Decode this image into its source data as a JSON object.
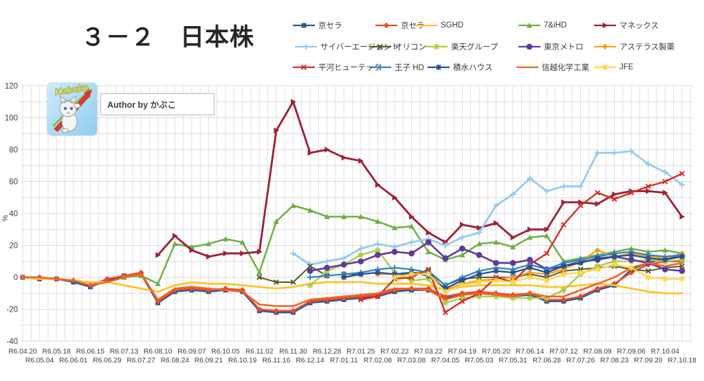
{
  "title": "３－２　日本株",
  "logo": {
    "text": "Kabuko"
  },
  "author_text": "Author by かぶこ",
  "y_axis": {
    "unit_label": "%",
    "min": -40,
    "max": 120,
    "tick_step": 20,
    "minor_grid_step": 10,
    "ticks": [
      120,
      100,
      80,
      60,
      40,
      20,
      0,
      -20,
      -40
    ]
  },
  "legend": {
    "rows": [
      [
        {
          "label": "京セラ",
          "series": 0
        },
        {
          "label": "京セラ",
          "series": 1
        },
        {
          "label": "SGHD",
          "series": 2
        },
        {
          "label": "7&iHD",
          "series": 3
        },
        {
          "label": "マネックス",
          "series": 4
        }
      ],
      [
        {
          "label": "サイバーエージェント",
          "series": 5
        },
        {
          "label": "オリコン",
          "series": 6
        },
        {
          "label": "楽天グループ",
          "series": 7
        },
        {
          "label": "東京メトロ",
          "series": 8
        },
        {
          "label": "アステラス製薬",
          "series": 9
        }
      ],
      [
        {
          "label": "平河ヒューテック",
          "series": 10
        },
        {
          "label": "王子 HD",
          "series": 11
        },
        {
          "label": "積水ハウス",
          "series": 12
        },
        {
          "label": "信越化学工業",
          "series": 13
        },
        {
          "label": "JFE",
          "series": 14
        }
      ]
    ]
  },
  "chart_data": {
    "type": "line",
    "title": "３－２　日本株",
    "xlabel": "",
    "ylabel": "%",
    "ylim": [
      -40,
      120
    ],
    "grid": true,
    "legend_position": "top",
    "categories": [
      "R6.04.20",
      "R6.05.04",
      "R6.05.18",
      "R6.06.01",
      "R6.06.15",
      "R6.06.29",
      "R6.07.13",
      "R6.07.27",
      "R6.08.10",
      "R6.08.24",
      "R6.09.07",
      "R6.09.21",
      "R6.10.05",
      "R6.10.19",
      "R6.11.02",
      "R6.11.16",
      "R6.11.30",
      "R6.12.14",
      "R6.12.28",
      "R7.01.11",
      "R7.01.25",
      "R7.02.08",
      "R7.02.22",
      "R7.03.08",
      "R7.03.22",
      "R7.04.05",
      "R7.04.19",
      "R7.05.03",
      "R7.05.20",
      "R7.05.31",
      "R7.06.14",
      "R7.06.28",
      "R7.07.12",
      "R7.07.26",
      "R7.08.09",
      "R7.08.23",
      "R7.09.06",
      "R7.09.20",
      "R7.10.04",
      "R7.10.18"
    ],
    "series": [
      {
        "key": "kyocera-blue",
        "name": "京セラ",
        "color": "#2F5597",
        "marker": "square",
        "line_width": 2.4,
        "values": [
          0,
          -1,
          -1,
          -3,
          -6,
          -2,
          1,
          2,
          -16,
          -9,
          -8,
          -9,
          -8,
          -9,
          -21,
          -22,
          -22,
          -16,
          -15,
          -14,
          -13,
          -12,
          -9,
          -8,
          -8,
          -13,
          -11,
          -10,
          -11,
          -12,
          -11,
          -15,
          -15,
          -13,
          -8,
          -5,
          5,
          9,
          12,
          13
        ]
      },
      {
        "key": "kyocera-orange",
        "name": "京セラ",
        "color": "#EC4B25",
        "marker": "diamond",
        "line_width": 2.4,
        "values": [
          0,
          0,
          -1,
          -2,
          -5,
          -1,
          1,
          3,
          -15,
          -8,
          -7,
          -8,
          -7,
          -8,
          -20,
          -21,
          -21,
          -15,
          -14,
          -13,
          -12,
          -11,
          -8,
          -7,
          -7,
          -12,
          -10,
          -9,
          -10,
          -11,
          -10,
          -14,
          -14,
          -12,
          -7,
          -4,
          3,
          8,
          10,
          10
        ]
      },
      {
        "key": "sghd",
        "name": "SGHD",
        "color": "#FFC428",
        "marker": "line",
        "line_width": 2.8,
        "values": [
          0,
          -1,
          -1,
          -2,
          -3,
          -3,
          -5,
          -7,
          -9,
          -5,
          -3,
          -4,
          -4,
          -5,
          -6,
          -7,
          -6,
          -4,
          -3,
          -3,
          -3,
          -4,
          -4,
          -4,
          -5,
          -8,
          -6,
          -5,
          -5,
          -5,
          -5,
          -6,
          -6,
          -5,
          -4,
          -5,
          -7,
          -9,
          -10,
          -10
        ]
      },
      {
        "key": "seven-and-i-hd",
        "name": "7&iHD",
        "color": "#6FAE44",
        "marker": "triangle",
        "line_width": 2.5,
        "values": [
          null,
          null,
          null,
          null,
          null,
          null,
          0,
          1,
          -4,
          21,
          19,
          21,
          24,
          22,
          3,
          35,
          45,
          42,
          38,
          38,
          38,
          35,
          31,
          32,
          16,
          11,
          14,
          21,
          22,
          19,
          25,
          26,
          10,
          12,
          14,
          16,
          18,
          16,
          17,
          15
        ]
      },
      {
        "key": "monex",
        "name": "マネックス",
        "color": "#9E2139",
        "marker": "triangle-right",
        "line_width": 2.9,
        "values": [
          null,
          null,
          null,
          null,
          null,
          null,
          null,
          null,
          14,
          26,
          17,
          13,
          15,
          15,
          16,
          92,
          110,
          78,
          80,
          75,
          73,
          58,
          50,
          38,
          28,
          22,
          33,
          31,
          34,
          25,
          30,
          30,
          47,
          47,
          46,
          52,
          54,
          54,
          53,
          38
        ]
      },
      {
        "key": "cyberagent",
        "name": "サイバーエージェント",
        "color": "#96C9F0",
        "marker": "plus",
        "line_width": 2.7,
        "values": [
          null,
          null,
          null,
          null,
          null,
          null,
          null,
          null,
          null,
          null,
          null,
          null,
          null,
          null,
          null,
          null,
          15,
          8,
          10,
          12,
          18,
          21,
          19,
          22,
          24,
          20,
          25,
          28,
          45,
          52,
          62,
          54,
          57,
          57,
          78,
          78,
          79,
          71,
          66,
          58
        ]
      },
      {
        "key": "oricon",
        "name": "オリコン",
        "color": "#565A28",
        "marker": "x",
        "line_width": 2.0,
        "values": [
          null,
          null,
          null,
          null,
          null,
          null,
          null,
          null,
          null,
          null,
          null,
          null,
          null,
          null,
          0,
          -3,
          -3,
          7,
          1,
          2,
          2,
          3,
          2,
          2,
          4,
          -5,
          -1,
          0,
          0,
          0,
          2,
          0,
          4,
          5,
          6,
          7,
          5,
          4,
          6,
          7
        ]
      },
      {
        "key": "rakuten-group",
        "name": "楽天グループ",
        "color": "#ABCC3F",
        "marker": "asterisk",
        "line_width": 2.3,
        "values": [
          null,
          null,
          null,
          null,
          null,
          null,
          null,
          null,
          null,
          null,
          null,
          null,
          null,
          null,
          null,
          null,
          null,
          -5,
          4,
          8,
          14,
          17,
          3,
          -2,
          -1,
          -16,
          -13,
          -12,
          -12,
          -13,
          -13,
          -13,
          -8,
          2,
          7,
          10,
          10,
          11,
          10,
          11
        ]
      },
      {
        "key": "tokyo-metro",
        "name": "東京メトロ",
        "color": "#5F3A9E",
        "marker": "circle",
        "line_width": 2.6,
        "values": [
          null,
          null,
          null,
          null,
          null,
          null,
          null,
          null,
          null,
          null,
          null,
          null,
          null,
          null,
          null,
          null,
          null,
          4,
          6,
          8,
          10,
          14,
          16,
          15,
          22,
          12,
          18,
          14,
          9,
          9,
          11,
          5,
          7,
          10,
          11,
          13,
          11,
          9,
          5,
          4
        ]
      },
      {
        "key": "astellas",
        "name": "アステラス製薬",
        "color": "#F5A01B",
        "marker": "diamond",
        "line_width": 2.3,
        "values": [
          null,
          null,
          null,
          null,
          null,
          null,
          null,
          null,
          null,
          null,
          null,
          null,
          null,
          null,
          null,
          null,
          null,
          null,
          null,
          null,
          null,
          2,
          2,
          3,
          3,
          -8,
          -4,
          -2,
          -1,
          0,
          3,
          2,
          5,
          10,
          17,
          13,
          15,
          13,
          12,
          15
        ]
      },
      {
        "key": "hirakawa-hutech",
        "name": "平河ヒューテック",
        "color": "#D92B23",
        "marker": "x",
        "line_width": 2.4,
        "values": [
          null,
          null,
          null,
          null,
          null,
          null,
          null,
          null,
          null,
          null,
          null,
          null,
          null,
          null,
          null,
          null,
          null,
          null,
          null,
          null,
          -14,
          -12,
          -1,
          0,
          5,
          -22,
          -15,
          -10,
          0,
          -3,
          8,
          15,
          33,
          45,
          53,
          49,
          53,
          57,
          60,
          65
        ]
      },
      {
        "key": "oji-hd",
        "name": "王子 HD",
        "color": "#2E86C8",
        "marker": "plus",
        "line_width": 2.3,
        "values": [
          null,
          null,
          null,
          null,
          null,
          null,
          null,
          null,
          null,
          null,
          null,
          null,
          null,
          null,
          null,
          null,
          null,
          0,
          1,
          2,
          3,
          5,
          6,
          5,
          3,
          -5,
          0,
          4,
          6,
          5,
          8,
          5,
          9,
          11,
          13,
          15,
          16,
          14,
          13,
          14
        ]
      },
      {
        "key": "sekisui-house",
        "name": "積水ハウス",
        "color": "#2A4E8F",
        "marker": "asterisk",
        "line_width": 2.3,
        "values": [
          null,
          null,
          null,
          null,
          null,
          null,
          null,
          null,
          null,
          null,
          null,
          null,
          null,
          null,
          null,
          null,
          null,
          null,
          null,
          0,
          2,
          3,
          2,
          3,
          1,
          -7,
          -2,
          2,
          4,
          3,
          6,
          3,
          7,
          9,
          12,
          13,
          14,
          12,
          11,
          13
        ]
      },
      {
        "key": "shin-etsu-chemical",
        "name": "信越化学工業",
        "color": "#F06423",
        "marker": "line",
        "line_width": 2.6,
        "values": [
          0,
          0,
          -1,
          -2,
          -5,
          -3,
          0,
          2,
          -14,
          -7,
          -6,
          -7,
          -8,
          -9,
          -17,
          -18,
          -18,
          -14,
          -13,
          -12,
          -11,
          -10,
          -7,
          -7,
          -8,
          -14,
          -11,
          -10,
          -11,
          -12,
          -10,
          -12,
          -12,
          -8,
          -4,
          0,
          6,
          9,
          7,
          9
        ]
      },
      {
        "key": "jfe",
        "name": "JFE",
        "color": "#FFD84A",
        "marker": "asterisk",
        "line_width": 2.3,
        "values": [
          null,
          null,
          null,
          null,
          null,
          null,
          null,
          null,
          null,
          null,
          null,
          null,
          null,
          null,
          null,
          null,
          null,
          null,
          null,
          null,
          null,
          null,
          0,
          2,
          2,
          -9,
          -5,
          -3,
          -2,
          -3,
          0,
          -2,
          2,
          3,
          5,
          8,
          6,
          0,
          -1,
          -1
        ]
      }
    ]
  }
}
